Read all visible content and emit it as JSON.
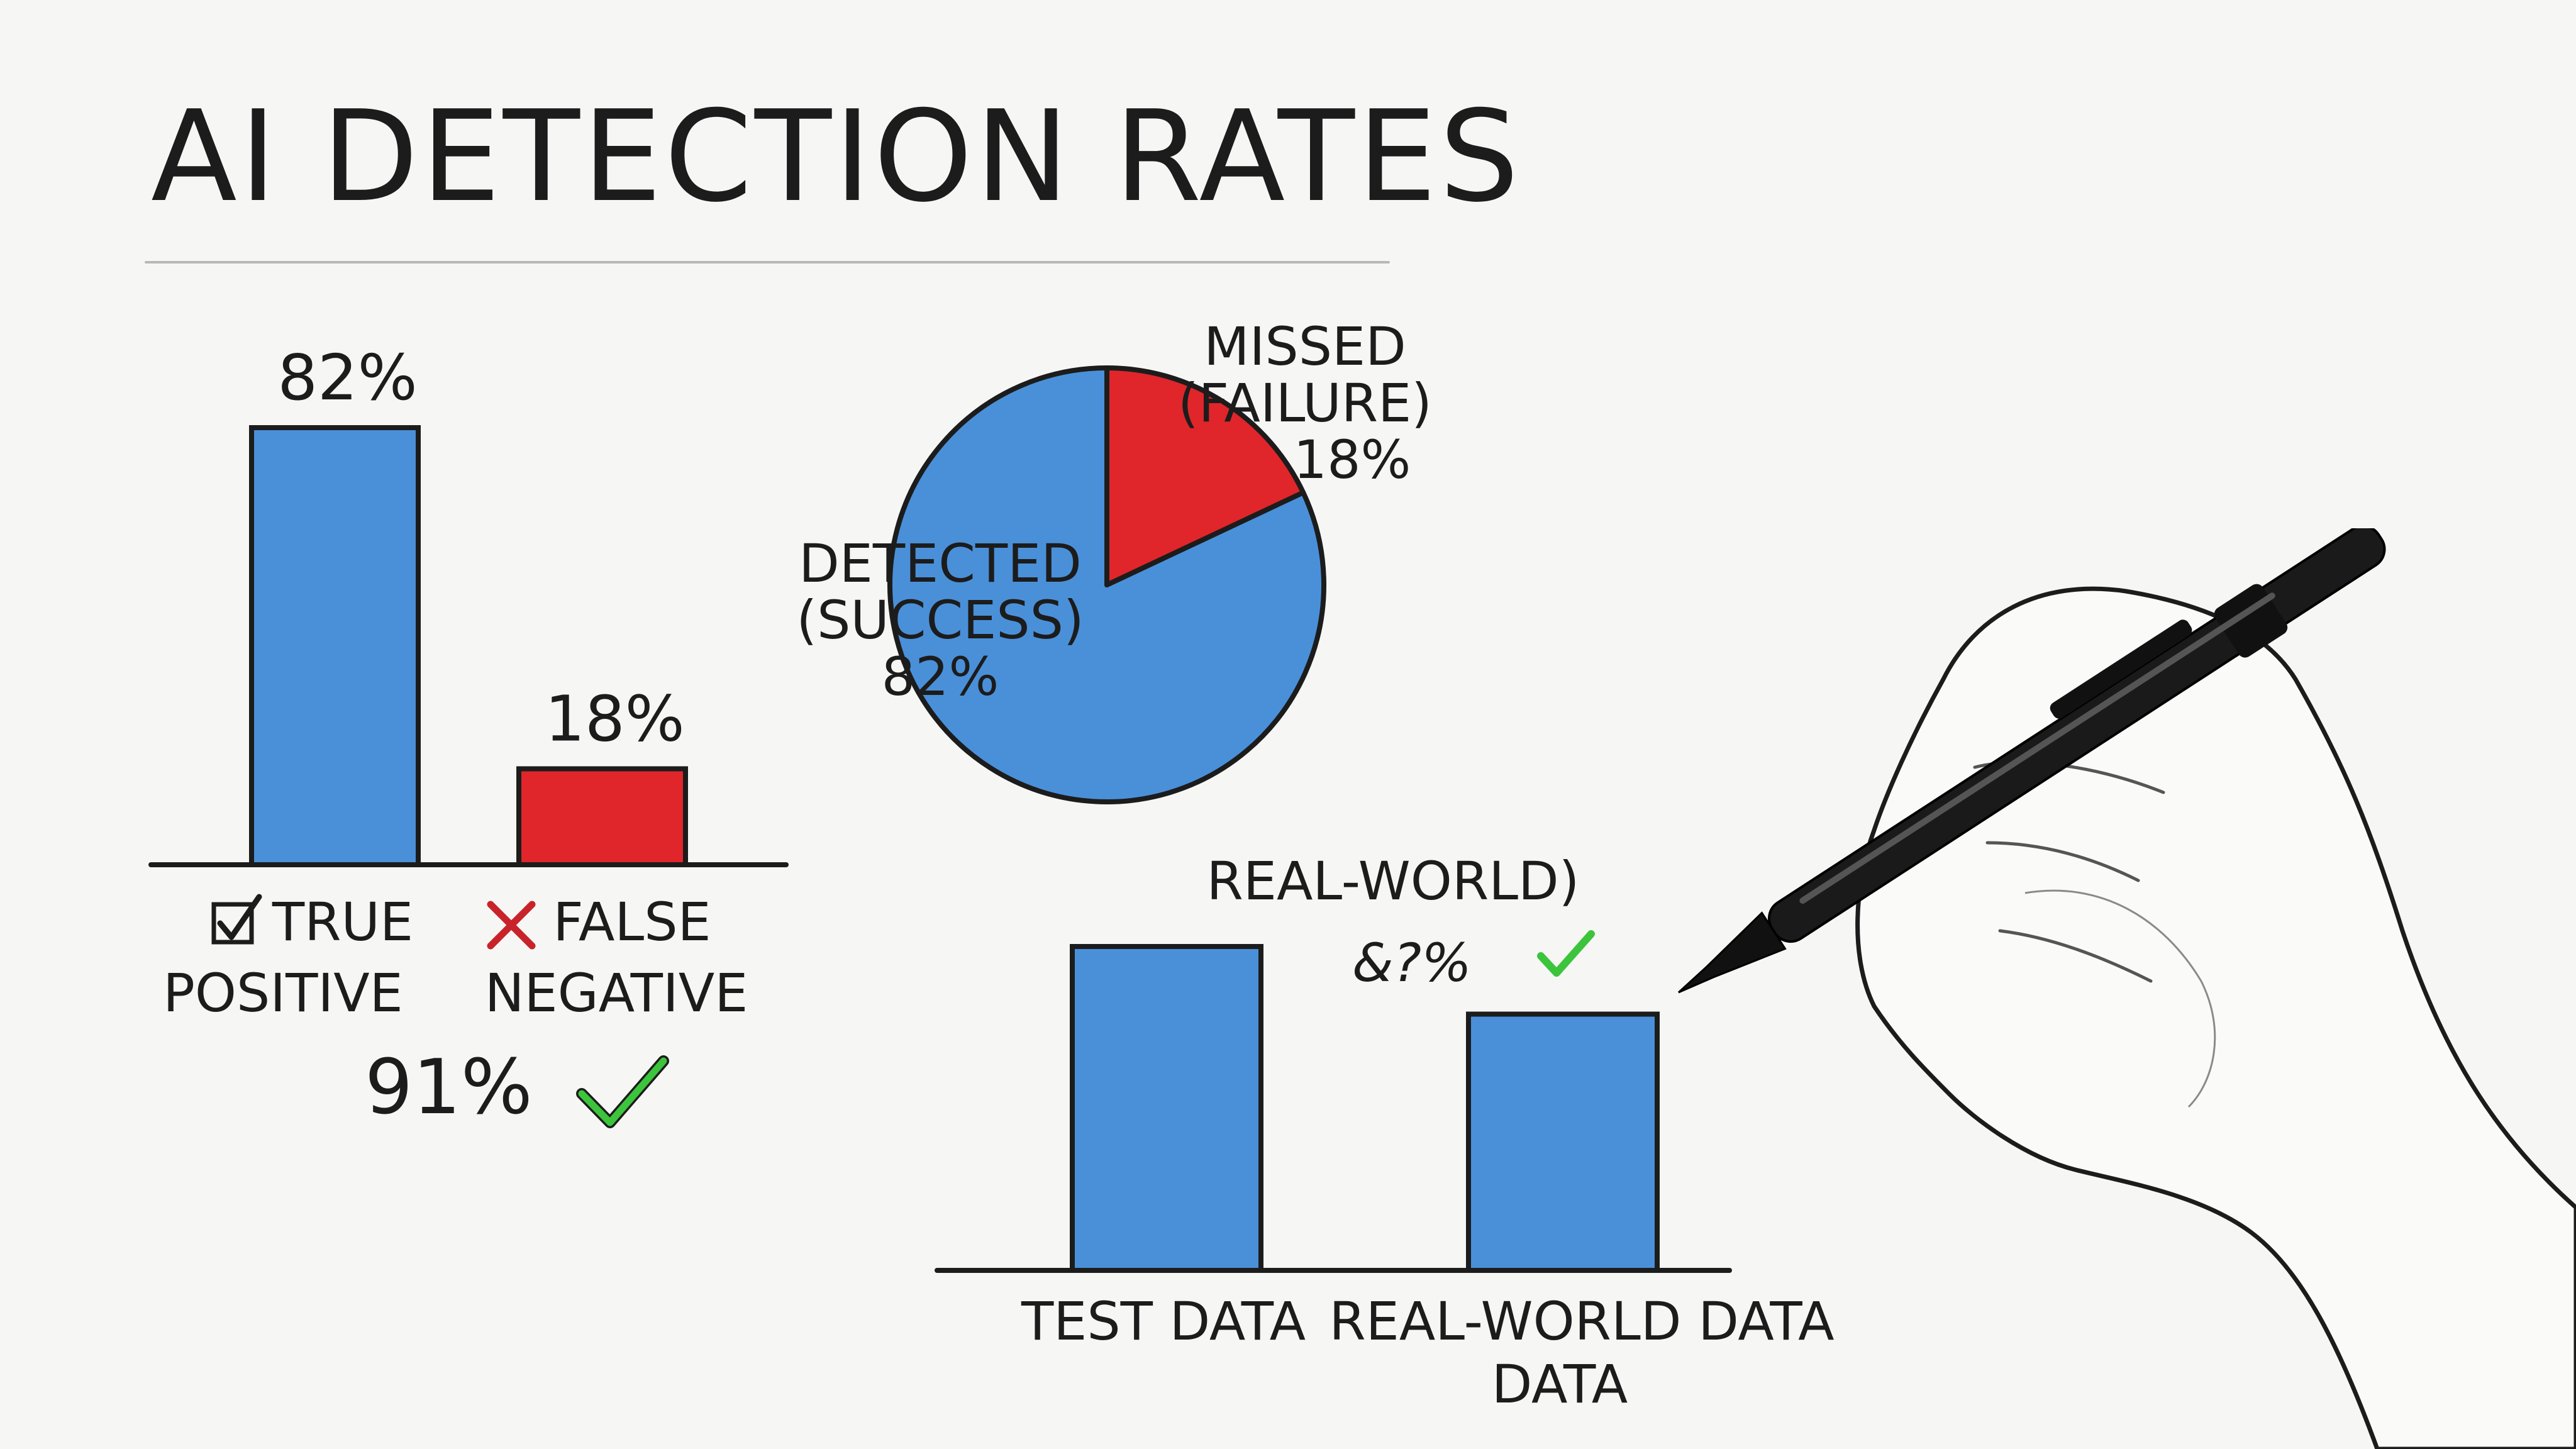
{
  "title": "AI DETECTION RATES",
  "colors": {
    "blue": "#4a90d9",
    "red": "#e0262b",
    "check_green": "#3cc43c",
    "cross_red": "#c8232a"
  },
  "icons": [
    "check-box-icon",
    "cross-icon",
    "check-mark-icon",
    "hand-holding-pen-icon"
  ],
  "summary": {
    "value_label": "91%"
  },
  "chart_data": [
    {
      "type": "bar",
      "title": "",
      "categories": [
        "TRUE POSITIVE",
        "FALSE NEGATIVE"
      ],
      "category_lines": [
        [
          "TRUE",
          "POSITIVE"
        ],
        [
          "FALSE",
          "NEGATIVE"
        ]
      ],
      "values": [
        82,
        18
      ],
      "value_labels": [
        "82%",
        "18%"
      ],
      "colors": [
        "#4a90d9",
        "#e0262b"
      ],
      "ylim": [
        0,
        100
      ],
      "grid": false
    },
    {
      "type": "pie",
      "title": "",
      "slices": [
        {
          "lines": [
            "DETECTED",
            "(SUCCESS)"
          ],
          "value": 82,
          "label": "82%",
          "color": "#4a90d9"
        },
        {
          "lines": [
            "MISSED",
            "(FAILURE)"
          ],
          "value": 18,
          "label": "18%",
          "color": "#e0262b"
        }
      ]
    },
    {
      "type": "bar",
      "title": "",
      "categories": [
        "TEST DATA",
        "REAL-WORLD DATA DATA"
      ],
      "category_lines": [
        [
          "TEST DATA"
        ],
        [
          "REAL-WORLD DATA",
          "DATA"
        ]
      ],
      "values": [
        91,
        72
      ],
      "ylim": [
        0,
        100
      ],
      "annotation": {
        "lines": [
          "REAL-WORLD)",
          "&?%"
        ]
      },
      "colors": [
        "#4a90d9",
        "#4a90d9"
      ],
      "grid": false
    }
  ]
}
